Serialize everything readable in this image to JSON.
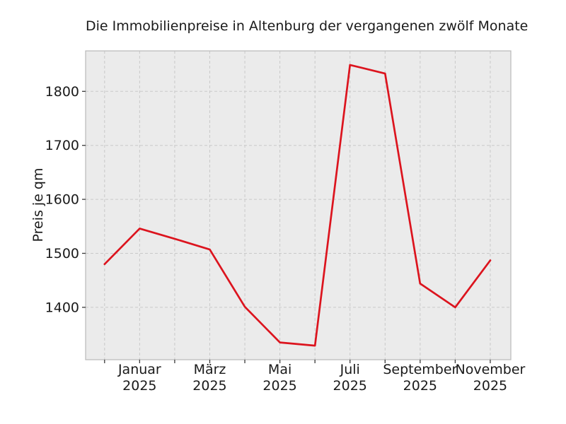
{
  "chart_data": {
    "type": "line",
    "title": "Die Immobilienpreise in Altenburg der vergangenen zwölf Monate",
    "ylabel": "Preis je qm",
    "xlabel": "",
    "num_points": 12,
    "x_tick_labels": [
      {
        "index": 1,
        "line1": "Januar",
        "line2": "2025"
      },
      {
        "index": 3,
        "line1": "März",
        "line2": "2025"
      },
      {
        "index": 5,
        "line1": "Mai",
        "line2": "2025"
      },
      {
        "index": 7,
        "line1": "Juli",
        "line2": "2025"
      },
      {
        "index": 9,
        "line1": "September",
        "line2": "2025"
      },
      {
        "index": 11,
        "line1": "November",
        "line2": "2025"
      }
    ],
    "y_ticks": [
      1400,
      1500,
      1600,
      1700,
      1800
    ],
    "ylim": [
      1303,
      1875
    ],
    "series": [
      {
        "name": "Preis je qm",
        "values": [
          1480,
          1546,
          1527,
          1507,
          1401,
          1335,
          1329,
          1849,
          1833,
          1444,
          1400,
          1487
        ]
      }
    ],
    "grid": true,
    "legend": false
  },
  "colors": {
    "line": "#dc141e",
    "plot_background": "#ebebeb",
    "figure_background": "#ffffff",
    "grid": "#c9c9c9",
    "spine": "#bdbdbd",
    "tick": "#3a3a3a",
    "text": "#1a1a1a"
  }
}
